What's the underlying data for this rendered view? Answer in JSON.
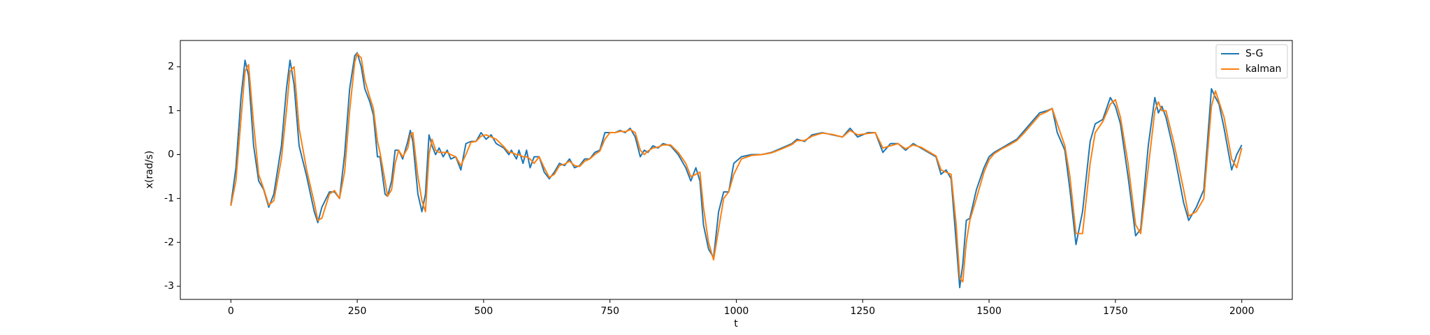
{
  "chart_data": {
    "type": "line",
    "xlabel": "t",
    "ylabel": "x(rad/s)",
    "xlim": [
      -100,
      2100
    ],
    "xticks": [
      0,
      250,
      500,
      750,
      1000,
      1250,
      1500,
      1750,
      2000
    ],
    "ylim": [
      -3.3,
      2.6
    ],
    "yticks": [
      -3,
      -2,
      -1,
      0,
      1,
      2
    ],
    "legend": "upper right",
    "grid": false,
    "x": [
      0,
      10,
      20,
      28,
      35,
      45,
      55,
      65,
      75,
      85,
      100,
      110,
      117,
      125,
      135,
      150,
      165,
      172,
      180,
      195,
      205,
      215,
      225,
      235,
      245,
      250,
      258,
      265,
      275,
      282,
      290,
      295,
      305,
      310,
      318,
      325,
      332,
      340,
      350,
      355,
      360,
      370,
      378,
      385,
      392,
      398,
      405,
      412,
      420,
      428,
      435,
      445,
      455,
      465,
      475,
      485,
      495,
      505,
      515,
      525,
      540,
      550,
      555,
      565,
      570,
      578,
      585,
      592,
      600,
      610,
      620,
      630,
      640,
      650,
      660,
      670,
      680,
      690,
      700,
      710,
      720,
      730,
      740,
      750,
      760,
      770,
      780,
      790,
      800,
      810,
      818,
      825,
      835,
      845,
      855,
      870,
      885,
      900,
      910,
      920,
      928,
      935,
      945,
      955,
      965,
      975,
      985,
      995,
      1010,
      1030,
      1050,
      1070,
      1090,
      1110,
      1120,
      1135,
      1150,
      1170,
      1190,
      1210,
      1225,
      1240,
      1260,
      1275,
      1290,
      1305,
      1320,
      1335,
      1350,
      1365,
      1380,
      1395,
      1405,
      1415,
      1425,
      1435,
      1442,
      1448,
      1455,
      1462,
      1475,
      1490,
      1500,
      1510,
      1525,
      1540,
      1555,
      1570,
      1585,
      1600,
      1615,
      1625,
      1635,
      1650,
      1660,
      1672,
      1685,
      1700,
      1710,
      1725,
      1740,
      1750,
      1760,
      1775,
      1790,
      1800,
      1815,
      1828,
      1835,
      1842,
      1850,
      1865,
      1885,
      1895,
      1910,
      1925,
      1940,
      1948,
      1955,
      1965,
      1980,
      1990,
      2000
    ],
    "series": [
      {
        "name": "S-G",
        "color": "#1f77b4",
        "values": [
          -1.15,
          -0.3,
          1.3,
          2.15,
          1.8,
          0.2,
          -0.6,
          -0.8,
          -1.2,
          -0.9,
          0.2,
          1.5,
          2.15,
          1.6,
          0.2,
          -0.5,
          -1.3,
          -1.55,
          -1.2,
          -0.85,
          -0.85,
          -1.0,
          0,
          1.5,
          2.25,
          2.32,
          2.0,
          1.5,
          1.2,
          0.9,
          -0.05,
          -0.05,
          -0.9,
          -0.95,
          -0.6,
          0.1,
          0.1,
          -0.1,
          0.3,
          0.55,
          0.3,
          -0.9,
          -1.3,
          -0.9,
          0.45,
          0.2,
          0,
          0.15,
          -0.05,
          0.1,
          -0.1,
          -0.05,
          -0.35,
          0.25,
          0.3,
          0.3,
          0.5,
          0.35,
          0.45,
          0.25,
          0.15,
          0.0,
          0.1,
          -0.1,
          0.1,
          -0.2,
          0.1,
          -0.3,
          -0.05,
          -0.05,
          -0.4,
          -0.55,
          -0.4,
          -0.2,
          -0.25,
          -0.1,
          -0.3,
          -0.25,
          -0.1,
          -0.1,
          0.05,
          0.1,
          0.5,
          0.5,
          0.5,
          0.55,
          0.5,
          0.6,
          0.4,
          -0.05,
          0.1,
          0.05,
          0.2,
          0.15,
          0.25,
          0.2,
          0,
          -0.3,
          -0.6,
          -0.3,
          -0.6,
          -1.6,
          -2.15,
          -2.35,
          -1.3,
          -0.85,
          -0.85,
          -0.2,
          -0.05,
          0,
          0,
          0.05,
          0.15,
          0.25,
          0.35,
          0.3,
          0.45,
          0.5,
          0.45,
          0.4,
          0.6,
          0.4,
          0.5,
          0.5,
          0.05,
          0.25,
          0.25,
          0.1,
          0.25,
          0.15,
          0.05,
          -0.05,
          -0.45,
          -0.35,
          -0.55,
          -2.0,
          -3.03,
          -2.5,
          -1.5,
          -1.45,
          -0.8,
          -0.3,
          -0.05,
          0.05,
          0.15,
          0.25,
          0.35,
          0.55,
          0.75,
          0.95,
          1.0,
          1.05,
          0.5,
          0.1,
          -0.8,
          -2.05,
          -1.3,
          0.3,
          0.7,
          0.8,
          1.3,
          1.1,
          0.7,
          -0.5,
          -1.85,
          -1.7,
          0.2,
          1.3,
          0.95,
          1.1,
          0.85,
          0.1,
          -1.1,
          -1.5,
          -1.2,
          -0.8,
          1.5,
          1.3,
          1.15,
          0.6,
          -0.35,
          0.0,
          0.22
        ]
      },
      {
        "name": "kalman",
        "color": "#ff7f0e",
        "values": [
          -1.17,
          -0.6,
          0.8,
          1.9,
          2.05,
          0.7,
          -0.45,
          -0.78,
          -1.15,
          -1.05,
          -0.1,
          1.0,
          1.9,
          2.0,
          0.6,
          -0.35,
          -1.1,
          -1.5,
          -1.45,
          -0.9,
          -0.82,
          -1.0,
          -0.4,
          1.0,
          2.1,
          2.3,
          2.2,
          1.7,
          1.3,
          1.05,
          0.3,
          0.05,
          -0.6,
          -0.95,
          -0.8,
          -0.2,
          0.1,
          -0.05,
          0.15,
          0.45,
          0.5,
          -0.5,
          -1.05,
          -1.3,
          0.0,
          0.35,
          0.1,
          0.05,
          0.05,
          0.05,
          0,
          -0.05,
          -0.25,
          0.0,
          0.28,
          0.3,
          0.42,
          0.45,
          0.4,
          0.35,
          0.18,
          0.05,
          0.05,
          0,
          0.0,
          -0.05,
          -0.05,
          -0.1,
          -0.2,
          -0.05,
          -0.3,
          -0.52,
          -0.45,
          -0.25,
          -0.22,
          -0.15,
          -0.25,
          -0.27,
          -0.15,
          -0.1,
          0.0,
          0.08,
          0.35,
          0.5,
          0.5,
          0.53,
          0.52,
          0.57,
          0.5,
          0.1,
          0.0,
          0.08,
          0.15,
          0.17,
          0.22,
          0.22,
          0.05,
          -0.2,
          -0.5,
          -0.45,
          -0.4,
          -1.2,
          -2.0,
          -2.4,
          -1.7,
          -1.0,
          -0.85,
          -0.45,
          -0.1,
          -0.02,
          0,
          0.04,
          0.13,
          0.23,
          0.32,
          0.32,
          0.42,
          0.49,
          0.46,
          0.4,
          0.55,
          0.45,
          0.48,
          0.5,
          0.15,
          0.2,
          0.25,
          0.13,
          0.22,
          0.17,
          0.07,
          -0.03,
          -0.35,
          -0.4,
          -0.45,
          -1.6,
          -2.8,
          -2.9,
          -2.0,
          -1.5,
          -1.0,
          -0.4,
          -0.12,
          0.02,
          0.13,
          0.22,
          0.32,
          0.5,
          0.7,
          0.9,
          0.98,
          1.05,
          0.7,
          0.2,
          -0.5,
          -1.8,
          -1.8,
          -0.2,
          0.5,
          0.75,
          1.15,
          1.25,
          0.85,
          -0.2,
          -1.6,
          -1.8,
          -0.3,
          1.0,
          1.2,
          1.0,
          1.0,
          0.3,
          -0.8,
          -1.4,
          -1.3,
          -1.0,
          1.1,
          1.45,
          1.2,
          0.85,
          -0.1,
          -0.3,
          0.15
        ]
      }
    ]
  }
}
